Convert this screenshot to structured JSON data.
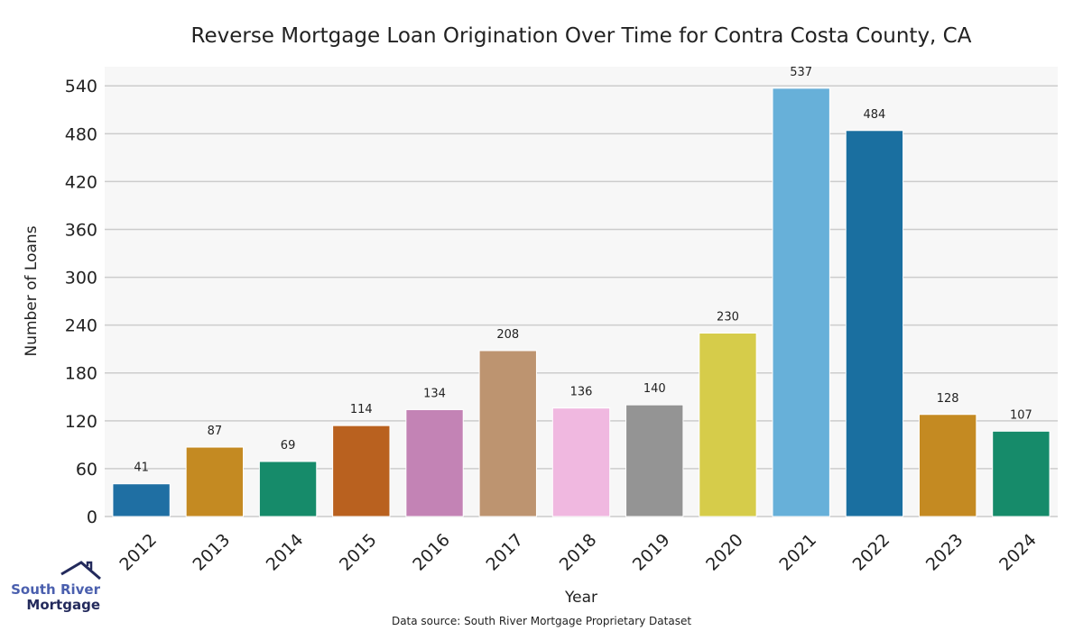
{
  "chart_data": {
    "type": "bar",
    "title": "Reverse Mortgage Loan Origination Over Time for Contra Costa County, CA",
    "xlabel": "Year",
    "ylabel": "Number of Loans",
    "categories": [
      "2012",
      "2013",
      "2014",
      "2015",
      "2016",
      "2017",
      "2018",
      "2019",
      "2020",
      "2021",
      "2022",
      "2023",
      "2024"
    ],
    "values": [
      41,
      87,
      69,
      114,
      134,
      208,
      136,
      140,
      230,
      537,
      484,
      128,
      107
    ],
    "colors": [
      "#1f6fa3",
      "#c48a22",
      "#168b6a",
      "#b9611f",
      "#c383b5",
      "#bd9470",
      "#f0b8e0",
      "#949494",
      "#d6cc4a",
      "#67b0d9",
      "#1a6fa0",
      "#c48a22",
      "#168b6a"
    ],
    "yticks": [
      0,
      60,
      120,
      180,
      240,
      300,
      360,
      420,
      480,
      540
    ],
    "ylim": [
      0,
      564
    ],
    "grid": true,
    "plot_background": "#f7f7f7"
  },
  "footer": {
    "source": "Data source: South River Mortgage Proprietary Dataset",
    "logo_line1": "South River",
    "logo_line2": "Mortgage"
  }
}
